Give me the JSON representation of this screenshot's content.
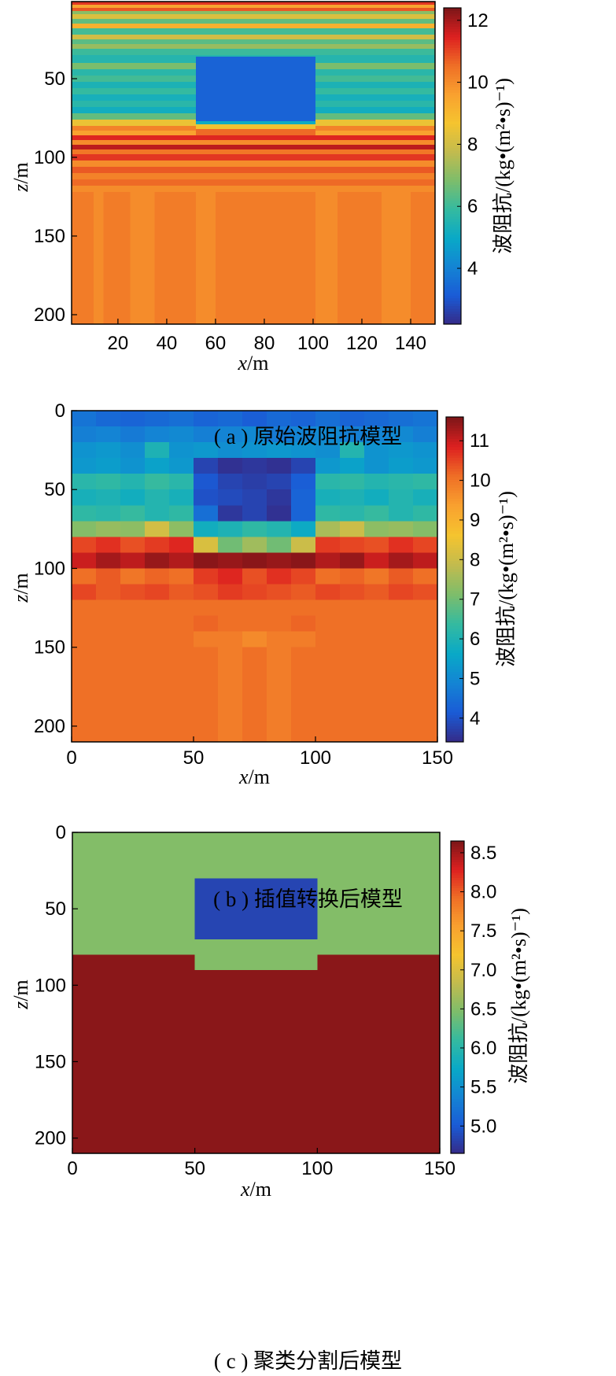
{
  "colormap": [
    "#352a87",
    "#1a5bd6",
    "#1484d4",
    "#09a9c7",
    "#34baa0",
    "#7dbd6b",
    "#c2bb4e",
    "#f5c42f",
    "#f9a12f",
    "#ef6f26",
    "#dd2020",
    "#7d1518"
  ],
  "chart_data": [
    {
      "id": "a",
      "type": "heatmap",
      "caption": "( a ) 原始波阻抗模型",
      "xlabel": "x/m",
      "ylabel": "z/m",
      "colorbar_label": "波阻抗/(kg•(m²•s)⁻¹)",
      "xlim": [
        1,
        150
      ],
      "ylim": [
        206,
        1
      ],
      "xticks": [
        20,
        40,
        60,
        80,
        100,
        120,
        140
      ],
      "yticks": [
        50,
        100,
        150,
        200
      ],
      "clim": [
        2.2,
        12.4
      ],
      "cticks": [
        4,
        6,
        8,
        10,
        12
      ],
      "layer_values": [
        [
          1,
          3,
          11.2
        ],
        [
          3,
          5,
          9.5
        ],
        [
          5,
          7,
          10.8
        ],
        [
          7,
          9,
          7.0
        ],
        [
          9,
          12,
          8.2
        ],
        [
          12,
          15,
          6.5
        ],
        [
          15,
          18,
          9.2
        ],
        [
          18,
          22,
          6.1
        ],
        [
          22,
          25,
          8.0
        ],
        [
          25,
          28,
          6.4
        ],
        [
          28,
          31,
          7.2
        ],
        [
          31,
          35,
          6.0
        ],
        [
          35,
          40,
          5.6
        ],
        [
          40,
          44,
          6.8
        ],
        [
          44,
          48,
          5.7
        ],
        [
          48,
          52,
          6.1
        ],
        [
          52,
          56,
          5.4
        ],
        [
          56,
          60,
          5.9
        ],
        [
          60,
          64,
          5.3
        ],
        [
          64,
          68,
          5.7
        ],
        [
          68,
          72,
          5.2
        ],
        [
          72,
          76,
          6.5
        ],
        [
          76,
          80,
          8.5
        ],
        [
          80,
          83,
          10.2
        ],
        [
          83,
          86,
          9.6
        ],
        [
          86,
          89,
          11.4
        ],
        [
          89,
          92,
          10.0
        ],
        [
          92,
          95,
          11.8
        ],
        [
          95,
          98,
          10.4
        ],
        [
          98,
          102,
          11.2
        ],
        [
          102,
          106,
          10.0
        ],
        [
          106,
          110,
          10.8
        ],
        [
          110,
          114,
          10.2
        ],
        [
          114,
          118,
          10.6
        ],
        [
          118,
          122,
          10.0
        ],
        [
          122,
          206,
          10.3
        ]
      ],
      "block": {
        "x": [
          52,
          101
        ],
        "z": [
          36,
          77
        ],
        "value": 3.3
      },
      "block_below": [
        [
          77,
          79,
          5.1
        ],
        [
          79,
          82,
          8.6
        ],
        [
          82,
          86,
          10.6
        ]
      ],
      "deep_columns": [
        [
          1,
          10,
          10.3
        ],
        [
          10,
          14,
          10.0
        ],
        [
          14,
          25,
          10.3
        ],
        [
          25,
          35,
          10.0
        ],
        [
          35,
          52,
          10.3
        ],
        [
          52,
          60,
          10.0
        ],
        [
          60,
          101,
          10.3
        ],
        [
          101,
          110,
          10.0
        ],
        [
          110,
          128,
          10.3
        ],
        [
          128,
          140,
          10.0
        ],
        [
          140,
          150,
          10.3
        ]
      ]
    },
    {
      "id": "b",
      "type": "heatmap",
      "caption": "( b ) 插值转换后模型",
      "xlabel": "x/m",
      "ylabel": "z/m",
      "colorbar_label": "波阻抗/(kg•(m²•s)⁻¹)",
      "xlim": [
        0,
        150
      ],
      "ylim": [
        210,
        0
      ],
      "xticks": [
        0,
        50,
        100,
        150
      ],
      "yticks": [
        0,
        50,
        100,
        150,
        200
      ],
      "clim": [
        3.4,
        11.6
      ],
      "cticks": [
        4,
        5,
        6,
        7,
        8,
        9,
        10,
        11
      ],
      "cell_x": 10,
      "cell_z": 10,
      "rows": [
        [
          4.6,
          4.4,
          4.3,
          4.4,
          4.5,
          4.3,
          4.4,
          4.2,
          4.4,
          4.3,
          4.5,
          4.3,
          4.4,
          4.5,
          4.6
        ],
        [
          4.8,
          4.9,
          4.7,
          4.9,
          5.0,
          4.8,
          4.9,
          5.0,
          4.7,
          4.9,
          5.0,
          4.8,
          4.9,
          5.0,
          4.8
        ],
        [
          5.2,
          5.3,
          5.1,
          6.0,
          5.2,
          5.3,
          5.1,
          5.2,
          5.3,
          5.2,
          5.1,
          6.1,
          5.2,
          5.3,
          5.2
        ],
        [
          5.3,
          5.4,
          5.2,
          5.5,
          5.3,
          3.8,
          3.5,
          3.6,
          3.5,
          3.8,
          5.3,
          5.5,
          5.2,
          5.4,
          5.3
        ],
        [
          6.2,
          6.3,
          6.1,
          6.4,
          6.2,
          4.1,
          3.8,
          3.7,
          3.8,
          4.2,
          6.2,
          6.3,
          6.1,
          6.2,
          6.3
        ],
        [
          5.9,
          6.0,
          5.8,
          6.1,
          5.9,
          4.0,
          3.9,
          3.8,
          3.6,
          4.3,
          5.9,
          6.0,
          5.8,
          6.1,
          5.9
        ],
        [
          6.3,
          6.2,
          6.4,
          6.1,
          6.3,
          4.5,
          3.6,
          3.8,
          3.5,
          4.3,
          6.3,
          6.2,
          6.4,
          6.1,
          6.3
        ],
        [
          7.2,
          7.4,
          7.3,
          8.1,
          7.3,
          5.8,
          6.0,
          6.3,
          6.1,
          5.7,
          7.6,
          8.0,
          7.3,
          7.4,
          7.2
        ],
        [
          10.5,
          10.7,
          10.4,
          10.6,
          10.8,
          8.2,
          7.0,
          7.5,
          7.0,
          8.0,
          10.6,
          10.5,
          10.4,
          10.7,
          10.5
        ],
        [
          11.0,
          11.3,
          11.1,
          11.4,
          11.2,
          11.5,
          11.4,
          11.5,
          11.4,
          11.5,
          11.2,
          11.4,
          11.0,
          11.3,
          11.1
        ],
        [
          10.1,
          10.3,
          10.0,
          10.2,
          10.1,
          10.6,
          10.8,
          10.4,
          10.7,
          10.5,
          10.1,
          10.2,
          10.0,
          10.3,
          10.1
        ],
        [
          10.5,
          10.3,
          10.4,
          10.5,
          10.3,
          10.4,
          10.6,
          10.5,
          10.4,
          10.3,
          10.5,
          10.4,
          10.3,
          10.5,
          10.4
        ],
        [
          10.1,
          10.1,
          10.1,
          10.1,
          10.1,
          10.1,
          10.1,
          10.1,
          10.1,
          10.1,
          10.1,
          10.1,
          10.1,
          10.1,
          10.1
        ],
        [
          10.1,
          10.1,
          10.1,
          10.1,
          10.1,
          10.2,
          10.1,
          10.1,
          10.1,
          10.2,
          10.1,
          10.1,
          10.1,
          10.1,
          10.1
        ],
        [
          10.1,
          10.1,
          10.1,
          10.1,
          10.1,
          9.9,
          9.9,
          9.7,
          9.9,
          9.9,
          10.1,
          10.1,
          10.1,
          10.1,
          10.1
        ],
        [
          10.1,
          10.1,
          10.1,
          10.1,
          10.1,
          10.1,
          9.9,
          10.1,
          9.9,
          10.1,
          10.1,
          10.1,
          10.1,
          10.1,
          10.1
        ],
        [
          10.1,
          10.1,
          10.1,
          10.1,
          10.1,
          10.1,
          9.9,
          10.1,
          9.9,
          10.1,
          10.1,
          10.1,
          10.1,
          10.1,
          10.1
        ],
        [
          10.1,
          10.1,
          10.1,
          10.1,
          10.1,
          10.1,
          9.9,
          10.1,
          9.9,
          10.1,
          10.1,
          10.1,
          10.1,
          10.1,
          10.1
        ],
        [
          10.1,
          10.1,
          10.1,
          10.1,
          10.1,
          10.1,
          9.9,
          10.1,
          9.9,
          10.1,
          10.1,
          10.1,
          10.1,
          10.1,
          10.1
        ],
        [
          10.1,
          10.1,
          10.1,
          10.1,
          10.1,
          10.1,
          9.9,
          10.1,
          9.9,
          10.1,
          10.1,
          10.1,
          10.1,
          10.1,
          10.1
        ],
        [
          10.1,
          10.1,
          10.1,
          10.1,
          10.1,
          10.1,
          9.9,
          10.1,
          9.9,
          10.1,
          10.1,
          10.1,
          10.1,
          10.1,
          10.1
        ]
      ]
    },
    {
      "id": "c",
      "type": "heatmap",
      "caption": "( c ) 聚类分割后模型",
      "xlabel": "x/m",
      "ylabel": "z/m",
      "colorbar_label": "波阻抗/(kg•(m²•s)⁻¹)",
      "xlim": [
        0,
        150
      ],
      "ylim": [
        210,
        0
      ],
      "xticks": [
        0,
        50,
        100,
        150
      ],
      "yticks": [
        0,
        50,
        100,
        150,
        200
      ],
      "clim": [
        4.65,
        8.65
      ],
      "cticks": [
        5.0,
        5.5,
        6.0,
        6.5,
        7.0,
        7.5,
        8.0,
        8.5
      ],
      "regions": [
        {
          "x": [
            0,
            150
          ],
          "z": [
            0,
            80
          ],
          "value": 6.5
        },
        {
          "x": [
            50,
            100
          ],
          "z": [
            30,
            70
          ],
          "value": 4.85
        },
        {
          "x": [
            50,
            100
          ],
          "z": [
            80,
            90
          ],
          "value": 6.5
        },
        {
          "x": [
            0,
            50
          ],
          "z": [
            80,
            210
          ],
          "value": 8.6
        },
        {
          "x": [
            100,
            150
          ],
          "z": [
            80,
            210
          ],
          "value": 8.6
        },
        {
          "x": [
            50,
            100
          ],
          "z": [
            90,
            210
          ],
          "value": 8.6
        }
      ]
    }
  ]
}
